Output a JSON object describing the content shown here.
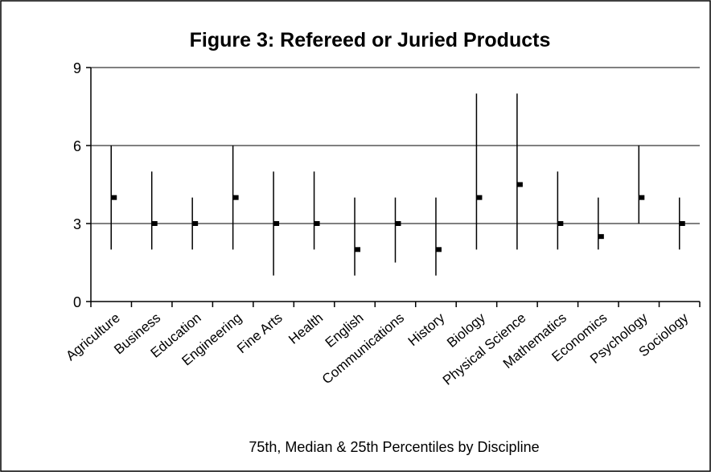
{
  "chart_data": {
    "type": "hilo",
    "title": "Figure 3: Refereed or Juried Products",
    "x_label": "75th, Median & 25th Percentiles by Discipline",
    "categories": [
      "Agriculture",
      "Business",
      "Education",
      "Engineering",
      "Fine Arts",
      "Health",
      "English",
      "Communications",
      "History",
      "Biology",
      "Physical Science",
      "Mathematics",
      "Economics",
      "Psychology",
      "Sociology"
    ],
    "p75": [
      6,
      5,
      4,
      6,
      5,
      5,
      4,
      4,
      4,
      8,
      8,
      5,
      4,
      6,
      4
    ],
    "median": [
      4,
      3,
      3,
      4,
      3,
      3,
      2,
      3,
      2,
      4,
      4.5,
      3,
      2.5,
      4,
      3
    ],
    "p25": [
      2,
      2,
      2,
      2,
      1,
      2,
      1,
      1.5,
      1,
      2,
      2,
      2,
      2,
      3,
      2
    ],
    "color": "#000000",
    "ylim": [
      0,
      9
    ],
    "yticks": [
      0,
      3,
      6,
      9
    ],
    "grid": true
  }
}
